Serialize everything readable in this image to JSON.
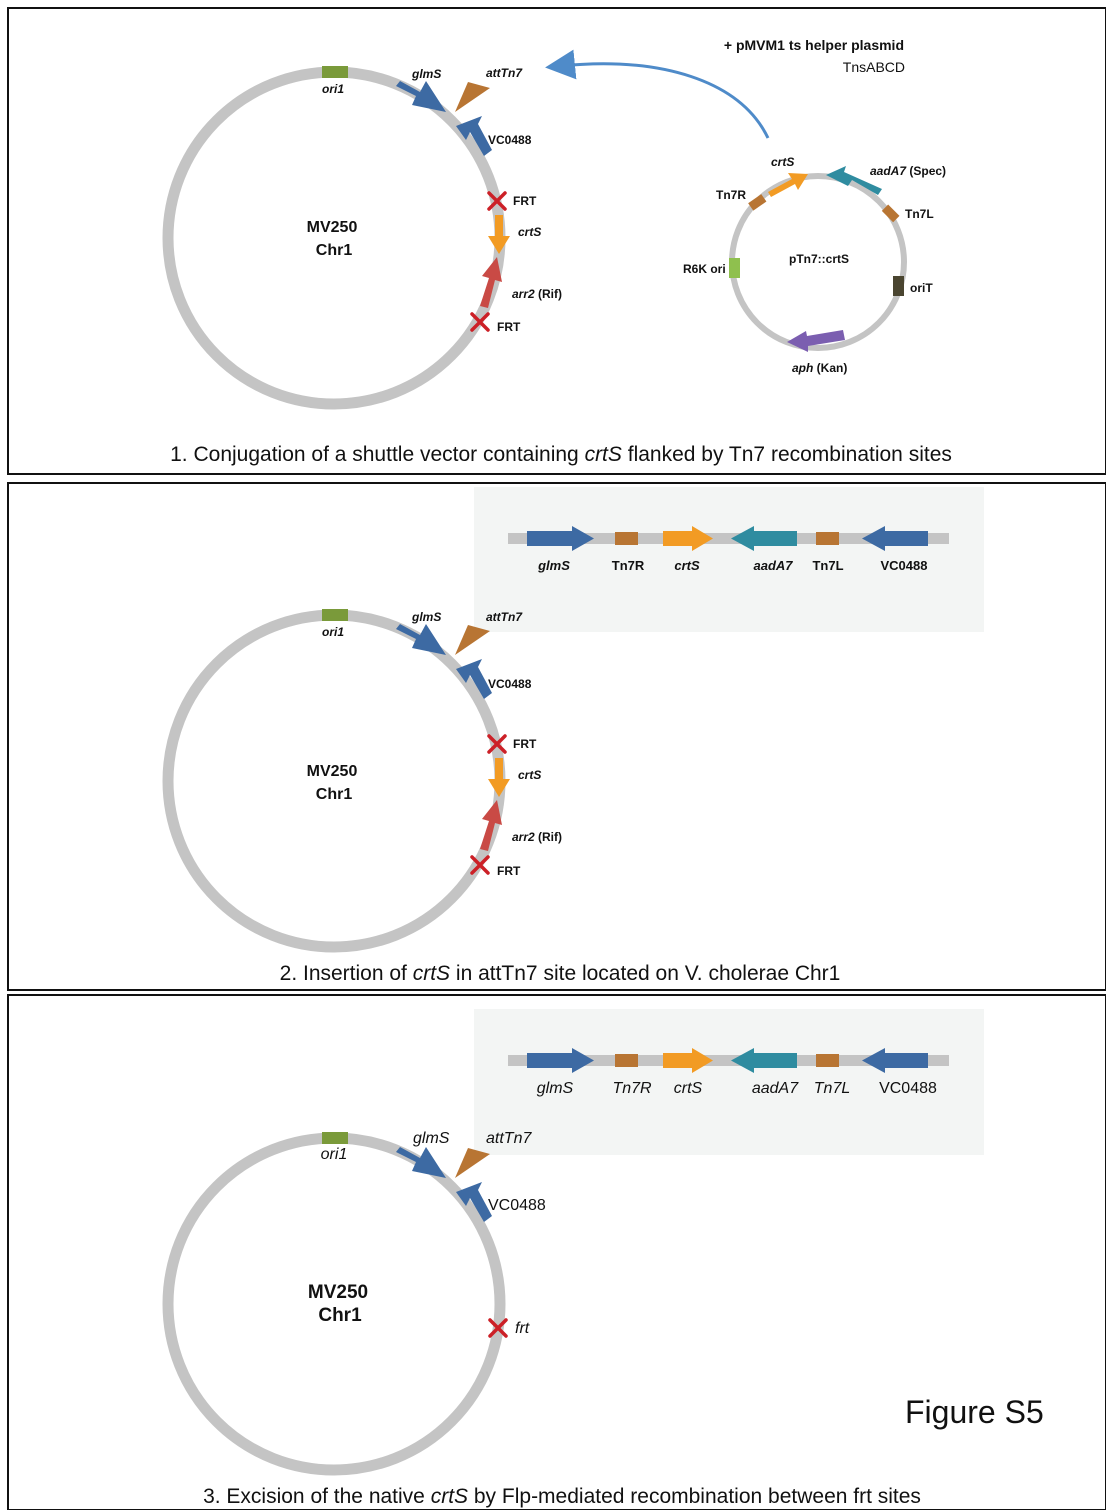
{
  "panel1": {
    "chromosome": {
      "name_line1": "MV250",
      "name_line2": "Chr1"
    },
    "labels": {
      "ori1": "ori1",
      "glmS": "glmS",
      "attTn7": "attTn7",
      "vc0488": "VC0488",
      "frt_top": "FRT",
      "crtS": "crtS",
      "arr2": "arr2",
      "rif": " (Rif)",
      "frt_bottom": "FRT"
    },
    "helper": {
      "line1": "+ pMVM1 ts helper plasmid",
      "line2": "TnsABCD"
    },
    "plasmid": {
      "name": "pTn7::crtS",
      "crtS": "crtS",
      "aadA7": "aadA7",
      "spec": " (Spec)",
      "tn7r": "Tn7R",
      "tn7l": "Tn7L",
      "r6k": "R6K ori",
      "oriT": "oriT",
      "aph": "aph",
      "kan": " (Kan)"
    },
    "caption": {
      "pre": "1. Conjugation of a shuttle vector containing ",
      "italic": "crtS",
      "post": " flanked by Tn7 recombination sites"
    }
  },
  "panel2": {
    "chromosome": {
      "name_line1": "MV250",
      "name_line2": "Chr1"
    },
    "labels": {
      "ori1": "ori1",
      "glmS": "glmS",
      "attTn7": "attTn7",
      "vc0488": "VC0488",
      "frt_top": "FRT",
      "crtS": "crtS",
      "arr2": "arr2",
      "rif": " (Rif)",
      "frt_bottom": "FRT"
    },
    "insert": [
      "glmS",
      "Tn7R",
      "crtS",
      "aadA7",
      "Tn7L",
      "VC0488"
    ],
    "caption": {
      "pre": "2. Insertion of ",
      "italic": "crtS",
      "post": " in attTn7 site located on V. cholerae Chr1"
    }
  },
  "panel3": {
    "chromosome": {
      "name_line1": "MV250",
      "name_line2": "Chr1"
    },
    "labels": {
      "ori1": "ori1",
      "glmS": "glmS",
      "attTn7": "attTn7",
      "vc0488": "VC0488",
      "frt": "frt"
    },
    "insert": [
      "glmS",
      "Tn7R",
      "crtS",
      "aadA7",
      "Tn7L",
      "VC0488"
    ],
    "figure_label": "Figure S5",
    "caption": {
      "pre": "3. Excision of the native ",
      "italic": "crtS",
      "post": " by Flp-mediated recombination between frt sites"
    }
  },
  "colors": {
    "backbone": "#c4c4c4",
    "glmS": "#3d6aa3",
    "vc0488": "#3d6aa3",
    "attTn7": "#b87533",
    "ori1": "#7a9a3a",
    "crtS": "#f29b24",
    "arr2": "#c94a45",
    "frt_cross": "#cc2027",
    "aadA7": "#2f8ca0",
    "tn7_box": "#b87533",
    "r6k": "#8fc04e",
    "oriT": "#4a4530",
    "aph": "#7b5eb0",
    "helper_arrow": "#4f8bc9",
    "inset_bg": "#f3f5f4"
  }
}
